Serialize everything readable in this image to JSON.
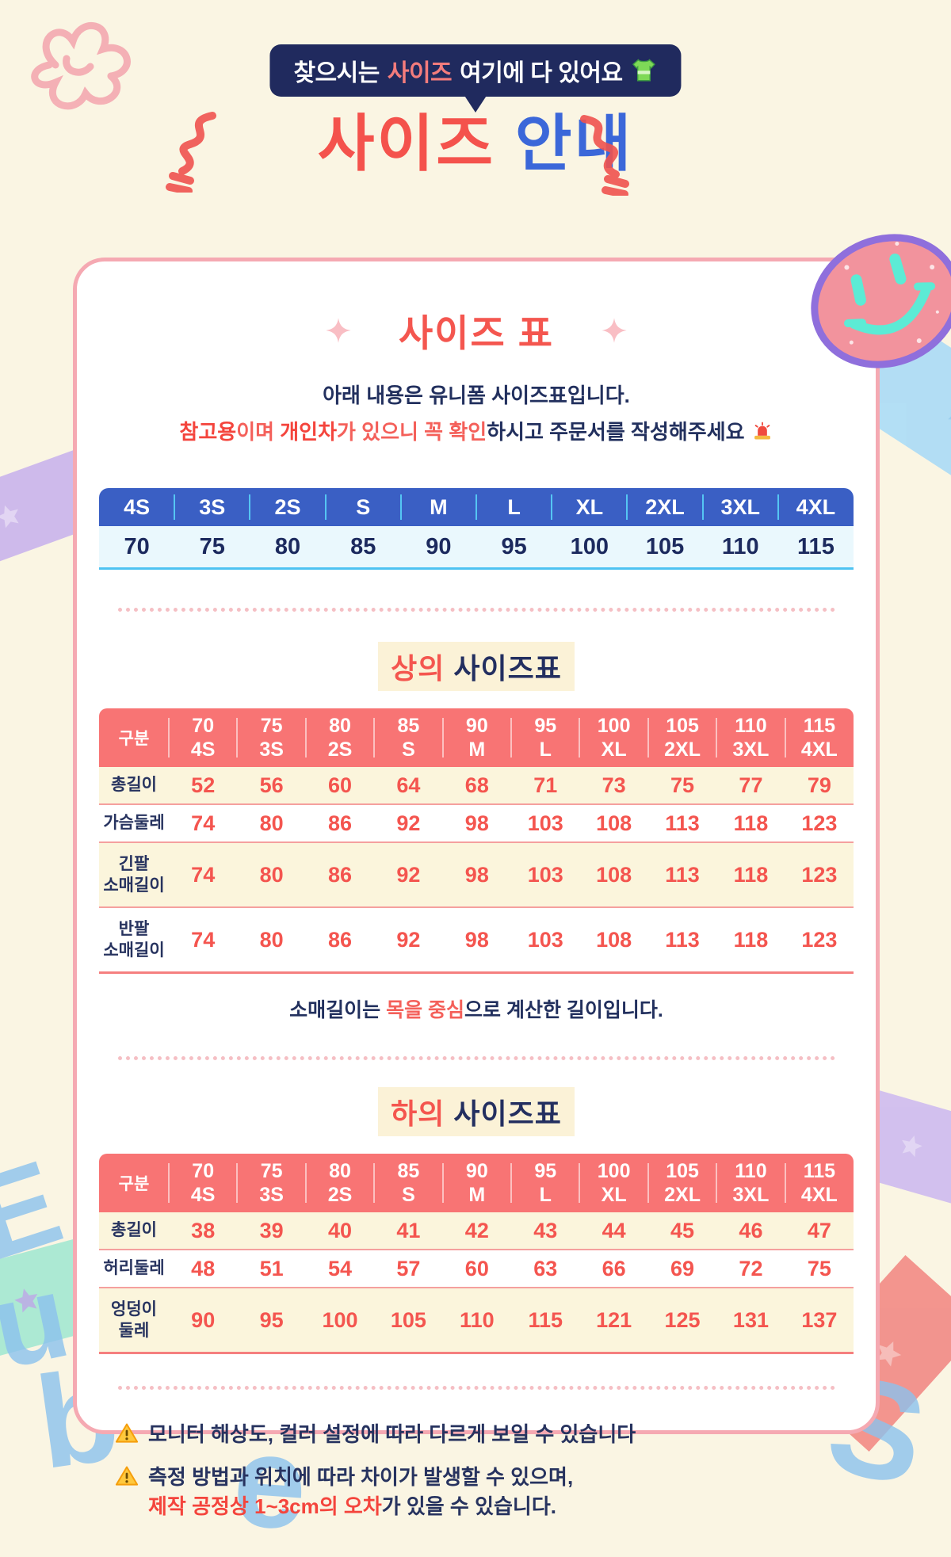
{
  "banner": {
    "text_prefix": "찾으시는 ",
    "text_highlight": "사이즈",
    "text_suffix": " 여기에 다 있어요",
    "icon": "tshirt-icon"
  },
  "title": {
    "red": "사이즈",
    "blue": "안내"
  },
  "size_card": {
    "heading": "사이즈 표",
    "intro_line1": "아래 내용은 유니폼 사이즈표입니다.",
    "intro_line2": {
      "seg_red_bold1": "참고용",
      "seg_red1": "이며 ",
      "seg_red_bold2": "개인차",
      "seg_red2": "가 있으니 ",
      "seg_red3": "꼭 확인",
      "seg_navy": "하시고 주문서를 작성해주세요",
      "icon": "siren-icon"
    },
    "quick_table": {
      "sizes": [
        "4S",
        "3S",
        "2S",
        "S",
        "M",
        "L",
        "XL",
        "2XL",
        "3XL",
        "4XL"
      ],
      "values": [
        "70",
        "75",
        "80",
        "85",
        "90",
        "95",
        "100",
        "105",
        "110",
        "115"
      ]
    },
    "top_section": {
      "title_red": "상의",
      "title_navy": " 사이즈표",
      "table": {
        "corner_label": "구분",
        "columns": [
          {
            "num": "70",
            "size": "4S"
          },
          {
            "num": "75",
            "size": "3S"
          },
          {
            "num": "80",
            "size": "2S"
          },
          {
            "num": "85",
            "size": "S"
          },
          {
            "num": "90",
            "size": "M"
          },
          {
            "num": "95",
            "size": "L"
          },
          {
            "num": "100",
            "size": "XL"
          },
          {
            "num": "105",
            "size": "2XL"
          },
          {
            "num": "110",
            "size": "3XL"
          },
          {
            "num": "115",
            "size": "4XL"
          }
        ],
        "rows": [
          {
            "label": "총길이",
            "values": [
              "52",
              "56",
              "60",
              "64",
              "68",
              "71",
              "73",
              "75",
              "77",
              "79"
            ]
          },
          {
            "label": "가슴둘레",
            "values": [
              "74",
              "80",
              "86",
              "92",
              "98",
              "103",
              "108",
              "113",
              "118",
              "123"
            ]
          },
          {
            "label": "긴팔\n소매길이",
            "values": [
              "74",
              "80",
              "86",
              "92",
              "98",
              "103",
              "108",
              "113",
              "118",
              "123"
            ]
          },
          {
            "label": "반팔\n소매길이",
            "values": [
              "74",
              "80",
              "86",
              "92",
              "98",
              "103",
              "108",
              "113",
              "118",
              "123"
            ]
          }
        ]
      },
      "note": {
        "pre": "소매길이는 ",
        "red": "목을 중심",
        "post": "으로 계산한 길이입니다."
      }
    },
    "bottom_section": {
      "title_red": "하의",
      "title_navy": " 사이즈표",
      "table": {
        "corner_label": "구분",
        "columns": [
          {
            "num": "70",
            "size": "4S"
          },
          {
            "num": "75",
            "size": "3S"
          },
          {
            "num": "80",
            "size": "2S"
          },
          {
            "num": "85",
            "size": "S"
          },
          {
            "num": "90",
            "size": "M"
          },
          {
            "num": "95",
            "size": "L"
          },
          {
            "num": "100",
            "size": "XL"
          },
          {
            "num": "105",
            "size": "2XL"
          },
          {
            "num": "110",
            "size": "3XL"
          },
          {
            "num": "115",
            "size": "4XL"
          }
        ],
        "rows": [
          {
            "label": "총길이",
            "values": [
              "38",
              "39",
              "40",
              "41",
              "42",
              "43",
              "44",
              "45",
              "46",
              "47"
            ]
          },
          {
            "label": "허리둘레",
            "values": [
              "48",
              "51",
              "54",
              "57",
              "60",
              "63",
              "66",
              "69",
              "72",
              "75"
            ]
          },
          {
            "label": "엉덩이\n둘레",
            "values": [
              "90",
              "95",
              "100",
              "105",
              "110",
              "115",
              "121",
              "125",
              "131",
              "137"
            ]
          }
        ]
      }
    },
    "warnings": [
      {
        "icon": "warning-icon",
        "lines": [
          [
            {
              "t": "모니터 해상도, 컬러 설정에 따라 다르게 보일 수 있습니다",
              "c": "navy"
            }
          ]
        ]
      },
      {
        "icon": "warning-icon",
        "lines": [
          [
            {
              "t": "측정 방법과 위치에 따라 차이가 발생할 수 있으며,",
              "c": "navy"
            }
          ],
          [
            {
              "t": "제작 공정상 1~3cm의 오차",
              "c": "red"
            },
            {
              "t": "가 있을 수 있습니다.",
              "c": "navy"
            }
          ]
        ]
      }
    ]
  },
  "decor": {
    "stamp_letters": [
      "E",
      "u",
      "b",
      "e",
      "S"
    ]
  },
  "colors": {
    "background": "#FAF5E3",
    "banner_navy": "#202A5E",
    "accent_red": "#F4524C",
    "accent_blue": "#3B67D9",
    "card_border_pink": "#F5A9B2",
    "table_header_blue": "#3A5FC4",
    "table_header_red": "#F87474",
    "row_cream": "#FBF5DC",
    "row_ice_blue": "#EAF8FD",
    "value_navy": "#1C2A5E",
    "value_red": "#F4554F"
  }
}
